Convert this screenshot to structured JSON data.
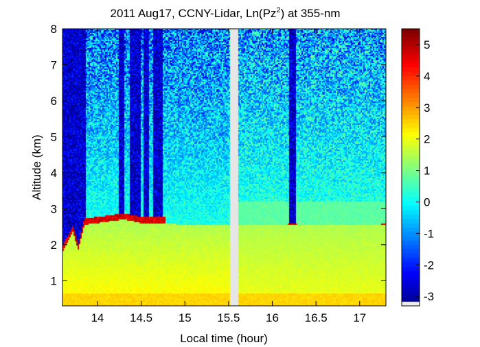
{
  "chart_data": {
    "type": "heatmap",
    "title_parts": [
      "2011 Aug17, CCNY-Lidar, Ln(Pz",
      "2",
      ") at 355-nm"
    ],
    "xlabel": "Local time (hour)",
    "ylabel": "Altitude (km)",
    "xlim": [
      13.6,
      17.3
    ],
    "ylim": [
      0.3,
      8.0
    ],
    "xticks": [
      14,
      14.5,
      15,
      15.5,
      16,
      16.5,
      17
    ],
    "xtick_labels": [
      "14",
      "14.5",
      "15",
      "15.5",
      "16",
      "16.5",
      "17"
    ],
    "yticks": [
      1,
      2,
      3,
      4,
      5,
      6,
      7,
      8
    ],
    "ytick_labels": [
      "1",
      "2",
      "3",
      "4",
      "5",
      "6",
      "7",
      "8"
    ],
    "colorbar": {
      "colormap": "jet",
      "range": [
        -3.3,
        5.5
      ],
      "ticks": [
        5,
        4,
        3,
        2,
        1,
        0,
        -1,
        -2,
        -3
      ],
      "tick_labels": [
        "5",
        "4",
        "3",
        "2",
        "1",
        "0",
        "-1",
        "-2",
        "-3"
      ]
    },
    "data_gap": [
      15.52,
      15.61
    ],
    "boundary_layer_top_km": [
      {
        "time": 13.6,
        "alt": 1.85
      },
      {
        "time": 13.72,
        "alt": 2.4
      },
      {
        "time": 13.78,
        "alt": 1.9
      },
      {
        "time": 13.85,
        "alt": 2.6
      },
      {
        "time": 14.3,
        "alt": 2.75
      },
      {
        "time": 14.5,
        "alt": 2.65
      },
      {
        "time": 14.75,
        "alt": 2.65
      },
      {
        "time": 15.0,
        "alt": 2.6
      }
    ],
    "dark_columns_hours": [
      [
        13.6,
        13.87
      ],
      [
        14.25,
        14.31
      ],
      [
        14.37,
        14.49
      ],
      [
        14.53,
        14.59
      ],
      [
        14.63,
        14.75
      ],
      [
        16.2,
        16.27
      ]
    ],
    "values_near_ground": 2.3,
    "values_above_cloud": -2.5
  }
}
